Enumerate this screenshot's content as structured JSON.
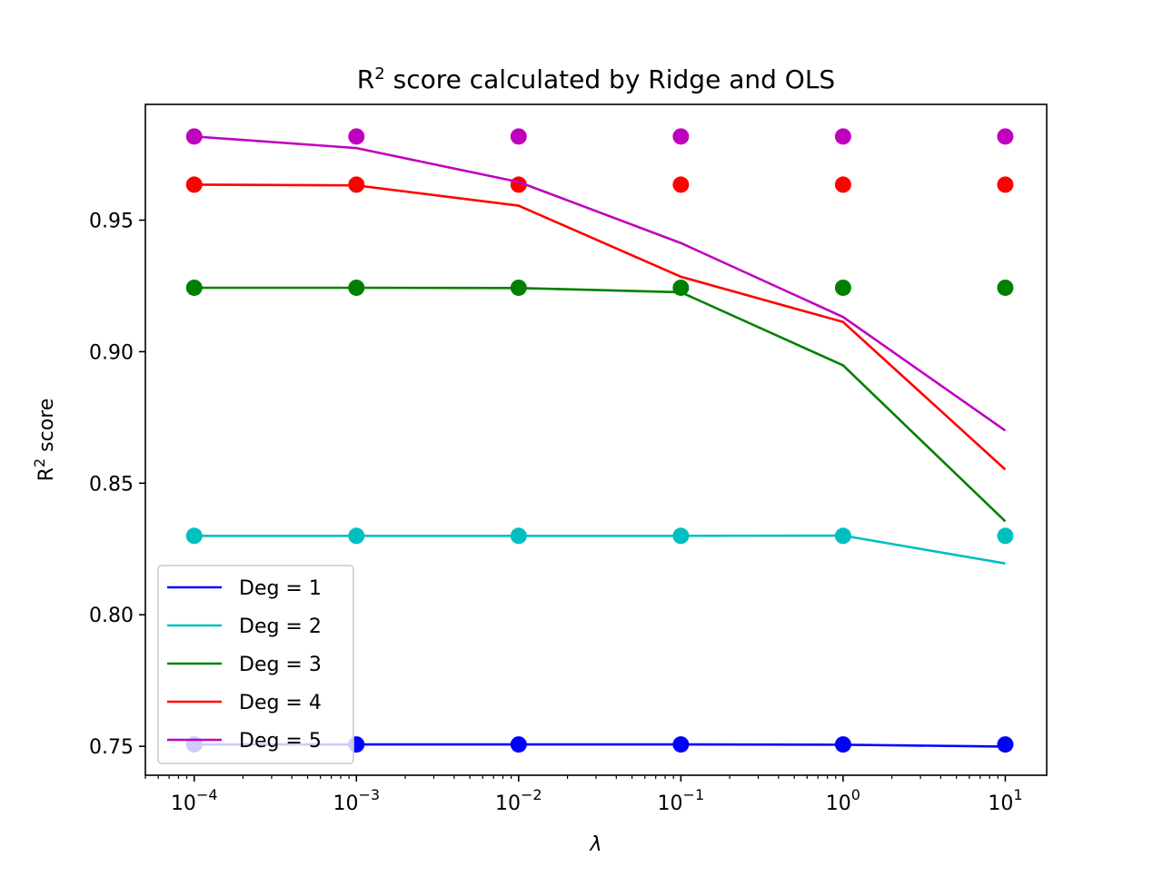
{
  "chart_data": {
    "type": "line",
    "title": "R",
    "title_sup": "2",
    "title_rest": " score calculated by Ridge and OLS",
    "xlabel": "λ",
    "ylabel": "R",
    "ylabel_sup": "2",
    "ylabel_rest": " score",
    "xscale": "log",
    "xlim": [
      5e-05,
      18
    ],
    "ylim": [
      0.739,
      0.994
    ],
    "x": [
      0.0001,
      0.001,
      0.01,
      0.1,
      1,
      10
    ],
    "xticks": [
      {
        "value": 0.0001,
        "base": "10",
        "exp": "−4"
      },
      {
        "value": 0.001,
        "base": "10",
        "exp": "−3"
      },
      {
        "value": 0.01,
        "base": "10",
        "exp": "−2"
      },
      {
        "value": 0.1,
        "base": "10",
        "exp": "−1"
      },
      {
        "value": 1,
        "base": "10",
        "exp": "0"
      },
      {
        "value": 10,
        "base": "10",
        "exp": "1"
      }
    ],
    "yticks": [
      0.75,
      0.8,
      0.85,
      0.9,
      0.95
    ],
    "ytick_labels": [
      "0.75",
      "0.80",
      "0.85",
      "0.90",
      "0.95"
    ],
    "grid": false,
    "legend_position": "lower-left",
    "series": [
      {
        "name": "Deg = 1",
        "color": "#0000ff",
        "ridge": [
          0.7507,
          0.7507,
          0.7507,
          0.7507,
          0.7506,
          0.7499
        ],
        "ols": [
          0.7507,
          0.7507,
          0.7507,
          0.7507,
          0.7507,
          0.7507
        ]
      },
      {
        "name": "Deg = 2",
        "color": "#00bfbf",
        "ridge": [
          0.83,
          0.83,
          0.83,
          0.83,
          0.8301,
          0.8195
        ],
        "ols": [
          0.83,
          0.83,
          0.83,
          0.83,
          0.83,
          0.83
        ]
      },
      {
        "name": "Deg = 3",
        "color": "#008000",
        "ridge": [
          0.9243,
          0.9243,
          0.9242,
          0.9226,
          0.8948,
          0.8355
        ],
        "ols": [
          0.9243,
          0.9243,
          0.9243,
          0.9243,
          0.9243,
          0.9243
        ]
      },
      {
        "name": "Deg = 4",
        "color": "#ff0000",
        "ridge": [
          0.9635,
          0.9632,
          0.9555,
          0.9285,
          0.9113,
          0.8552
        ],
        "ols": [
          0.9635,
          0.9635,
          0.9635,
          0.9635,
          0.9635,
          0.9635
        ]
      },
      {
        "name": "Deg = 5",
        "color": "#bf00bf",
        "ridge": [
          0.9818,
          0.9774,
          0.9645,
          0.9413,
          0.9132,
          0.87
        ],
        "ols": [
          0.9818,
          0.9818,
          0.9818,
          0.9818,
          0.9818,
          0.9818
        ]
      }
    ]
  }
}
